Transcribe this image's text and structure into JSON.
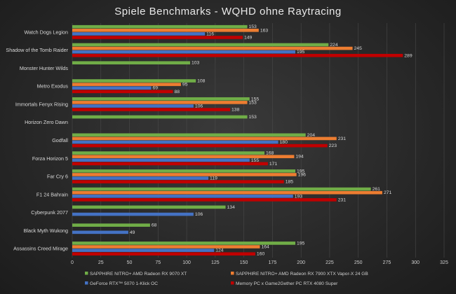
{
  "chart_data": {
    "type": "bar",
    "orientation": "horizontal",
    "title": "Spiele Benchmarks - WQHD ohne Raytracing",
    "xlabel": "",
    "ylabel": "",
    "xlim": [
      0,
      325
    ],
    "xticks": [
      0,
      25,
      50,
      75,
      100,
      125,
      150,
      175,
      200,
      225,
      250,
      275,
      300,
      325
    ],
    "grid": true,
    "legend_position": "bottom",
    "categories": [
      "Watch Dogs Legion",
      "Shadow of the Tomb Raider",
      "Monster Hunter Wilds",
      "Metro Exodus",
      "Immortals Fenyx Rising",
      "Horizon Zero Dawn",
      "Godfall",
      "Forza Horizon 5",
      "Far Cry 6",
      "F1 24 Bahrain",
      "Cyberpunk 2077",
      "Black Myth Wukong",
      "Assassins Creed Mirage"
    ],
    "series": [
      {
        "name": "SAPPHIRE NITRO+ AMD Radeon RX 9070 XT",
        "color": "#70ad47",
        "values": [
          153,
          224,
          103,
          108,
          155,
          153,
          204,
          168,
          195,
          261,
          134,
          68,
          195
        ]
      },
      {
        "name": "SAPPHIRE NITRO+ AMD Radeon RX 7900 XTX Vapor-X 24 GB",
        "color": "#ed7d31",
        "values": [
          163,
          245,
          null,
          95,
          153,
          null,
          231,
          194,
          196,
          271,
          null,
          null,
          164
        ]
      },
      {
        "name": "GeForce RTX™ 5070 1-Klick OC",
        "color": "#4472c4",
        "values": [
          116,
          195,
          null,
          69,
          106,
          null,
          180,
          155,
          119,
          193,
          106,
          49,
          124
        ]
      },
      {
        "name": "Memory PC x Game2Gether PC RTX 4080 Super",
        "color": "#c00000",
        "values": [
          149,
          289,
          null,
          88,
          138,
          null,
          223,
          171,
          185,
          231,
          null,
          null,
          160
        ]
      }
    ]
  }
}
